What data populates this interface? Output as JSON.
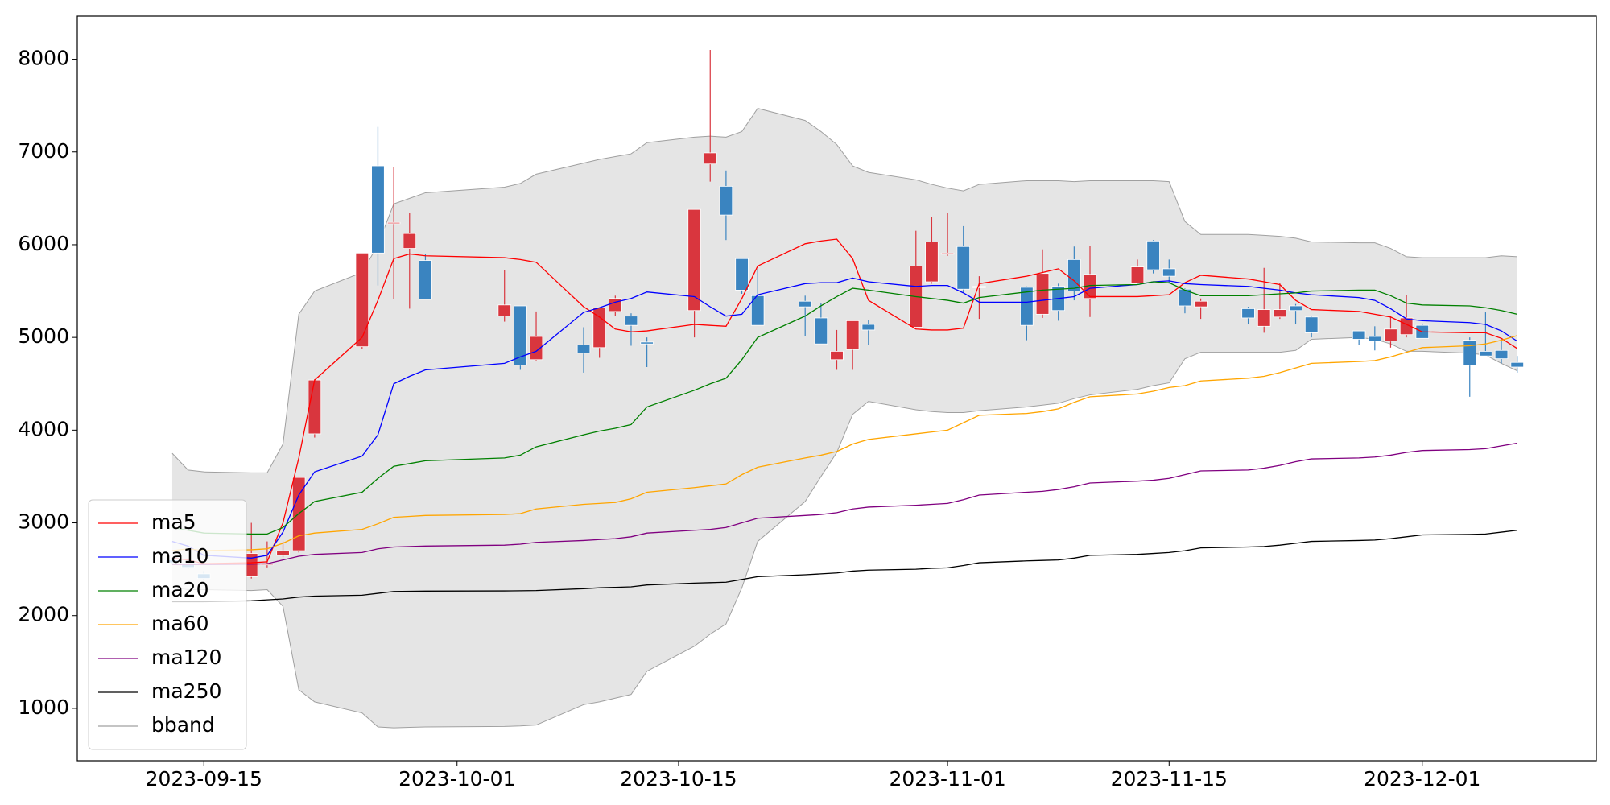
{
  "chart_data": {
    "type": "candlestick",
    "x": [
      "2023-09-13",
      "2023-09-14",
      "2023-09-15",
      "2023-09-18",
      "2023-09-19",
      "2023-09-20",
      "2023-09-21",
      "2023-09-22",
      "2023-09-25",
      "2023-09-26",
      "2023-09-27",
      "2023-09-28",
      "2023-09-29",
      "2023-10-04",
      "2023-10-05",
      "2023-10-06",
      "2023-10-09",
      "2023-10-10",
      "2023-10-11",
      "2023-10-12",
      "2023-10-13",
      "2023-10-16",
      "2023-10-17",
      "2023-10-18",
      "2023-10-19",
      "2023-10-20",
      "2023-10-23",
      "2023-10-24",
      "2023-10-25",
      "2023-10-26",
      "2023-10-27",
      "2023-10-30",
      "2023-10-31",
      "2023-11-01",
      "2023-11-02",
      "2023-11-03",
      "2023-11-06",
      "2023-11-07",
      "2023-11-08",
      "2023-11-09",
      "2023-11-10",
      "2023-11-13",
      "2023-11-14",
      "2023-11-15",
      "2023-11-16",
      "2023-11-17",
      "2023-11-20",
      "2023-11-21",
      "2023-11-22",
      "2023-11-23",
      "2023-11-24",
      "2023-11-27",
      "2023-11-28",
      "2023-11-29",
      "2023-11-30",
      "2023-12-01",
      "2023-12-04",
      "2023-12-05",
      "2023-12-06",
      "2023-12-07"
    ],
    "open": [
      2600,
      2560,
      2450,
      2420,
      2550,
      2650,
      2700,
      3960,
      4900,
      6850,
      6230,
      5960,
      5830,
      5230,
      5340,
      4760,
      4920,
      4890,
      5280,
      5230,
      4950,
      5290,
      6870,
      6630,
      5850,
      5450,
      5390,
      5210,
      4760,
      4870,
      5140,
      5110,
      5600,
      5900,
      5980,
      5540,
      5540,
      5250,
      5550,
      5840,
      5420,
      5580,
      6040,
      5740,
      5520,
      5330,
      5310,
      5120,
      5220,
      5340,
      5220,
      5070,
      5010,
      4960,
      5030,
      5130,
      4970,
      4850,
      4860,
      4730
    ],
    "high": [
      2620,
      2580,
      2480,
      3000,
      2800,
      2800,
      3500,
      4550,
      5910,
      7270,
      6840,
      6340,
      5900,
      5730,
      5340,
      5280,
      5110,
      5320,
      5450,
      5260,
      5000,
      6380,
      8100,
      6800,
      5860,
      5740,
      5450,
      5370,
      5080,
      5180,
      5190,
      6150,
      6300,
      6340,
      6200,
      5660,
      5550,
      5950,
      5580,
      5980,
      5990,
      5840,
      6050,
      5840,
      5530,
      5420,
      5330,
      5750,
      5590,
      5360,
      5230,
      5070,
      5120,
      5230,
      5460,
      5150,
      5000,
      5270,
      4980,
      4800
    ],
    "low": [
      2560,
      2500,
      2380,
      2400,
      2520,
      2630,
      2680,
      3920,
      4880,
      5560,
      5410,
      5310,
      5410,
      5170,
      4650,
      4750,
      4620,
      4780,
      5230,
      4910,
      4680,
      5000,
      6680,
      6050,
      5470,
      5130,
      5010,
      4930,
      4650,
      4650,
      4920,
      5090,
      5580,
      5880,
      5480,
      5200,
      4970,
      5210,
      5180,
      5400,
      5220,
      5580,
      5690,
      5580,
      5260,
      5200,
      5140,
      5050,
      5200,
      5140,
      5000,
      4920,
      4860,
      4890,
      5000,
      4990,
      4360,
      4800,
      4720,
      4620
    ],
    "close": [
      2570,
      2520,
      2400,
      2670,
      2560,
      2700,
      3490,
      4540,
      5910,
      5910,
      6240,
      6120,
      5410,
      5350,
      4700,
      5010,
      4830,
      5320,
      5420,
      5130,
      4930,
      6380,
      6990,
      6320,
      5510,
      5130,
      5330,
      4930,
      4850,
      5180,
      5080,
      5770,
      6030,
      5910,
      5520,
      5550,
      5130,
      5690,
      5290,
      5500,
      5680,
      5760,
      5730,
      5660,
      5340,
      5390,
      5210,
      5300,
      5300,
      5290,
      5050,
      4980,
      4960,
      5090,
      5210,
      4990,
      4700,
      4800,
      4770,
      4680
    ],
    "up_color": "#d9363e",
    "down_color": "#3a84c0",
    "series": [
      {
        "name": "ma5",
        "color": "#ff0000",
        "values": [
          2620,
          2600,
          2560,
          2570,
          2580,
          3000,
          3700,
          4540,
          5000,
          5400,
          5850,
          5900,
          5880,
          5860,
          5840,
          5810,
          5330,
          5220,
          5090,
          5060,
          5070,
          5140,
          5130,
          5120,
          5420,
          5770,
          6010,
          6040,
          6060,
          5850,
          5400,
          5090,
          5080,
          5080,
          5100,
          5580,
          5660,
          5700,
          5740,
          5610,
          5440,
          5440,
          5450,
          5460,
          5590,
          5670,
          5630,
          5600,
          5570,
          5400,
          5300,
          5280,
          5250,
          5220,
          5140,
          5060,
          5050,
          5050,
          4990,
          4880
        ]
      },
      {
        "name": "ma10",
        "color": "#0000ff",
        "values": [
          2800,
          2750,
          2650,
          2620,
          2650,
          2900,
          3300,
          3550,
          3720,
          3950,
          4500,
          4580,
          4650,
          4720,
          4790,
          4850,
          5270,
          5320,
          5380,
          5420,
          5490,
          5440,
          5330,
          5230,
          5250,
          5460,
          5580,
          5590,
          5590,
          5640,
          5600,
          5550,
          5560,
          5560,
          5480,
          5380,
          5380,
          5400,
          5420,
          5440,
          5530,
          5570,
          5600,
          5610,
          5580,
          5570,
          5550,
          5530,
          5510,
          5480,
          5460,
          5430,
          5400,
          5310,
          5200,
          5180,
          5160,
          5140,
          5070,
          4960
        ]
      },
      {
        "name": "ma20",
        "color": "#008000",
        "values": [
          2950,
          2920,
          2890,
          2880,
          2880,
          2950,
          3100,
          3230,
          3330,
          3480,
          3610,
          3640,
          3670,
          3700,
          3730,
          3820,
          3950,
          3990,
          4020,
          4060,
          4250,
          4430,
          4500,
          4560,
          4760,
          5000,
          5230,
          5340,
          5440,
          5530,
          5510,
          5440,
          5420,
          5400,
          5370,
          5430,
          5490,
          5510,
          5520,
          5530,
          5560,
          5570,
          5600,
          5590,
          5510,
          5450,
          5450,
          5460,
          5470,
          5480,
          5500,
          5510,
          5510,
          5450,
          5370,
          5350,
          5340,
          5320,
          5290,
          5250
        ]
      },
      {
        "name": "ma60",
        "color": "#ffa500",
        "values": [
          2700,
          2720,
          2700,
          2710,
          2720,
          2780,
          2860,
          2890,
          2930,
          2990,
          3060,
          3070,
          3080,
          3090,
          3100,
          3150,
          3200,
          3210,
          3220,
          3260,
          3330,
          3380,
          3400,
          3420,
          3520,
          3600,
          3700,
          3730,
          3770,
          3850,
          3900,
          3960,
          3980,
          4000,
          4080,
          4160,
          4180,
          4200,
          4230,
          4300,
          4360,
          4390,
          4420,
          4460,
          4480,
          4530,
          4560,
          4580,
          4620,
          4670,
          4720,
          4740,
          4750,
          4790,
          4840,
          4890,
          4910,
          4930,
          4970,
          5020
        ]
      },
      {
        "name": "ma120",
        "color": "#800080",
        "values": [
          2550,
          2550,
          2550,
          2555,
          2560,
          2600,
          2640,
          2660,
          2680,
          2720,
          2740,
          2745,
          2750,
          2760,
          2770,
          2790,
          2810,
          2820,
          2830,
          2850,
          2890,
          2920,
          2930,
          2950,
          3000,
          3050,
          3080,
          3090,
          3110,
          3150,
          3170,
          3190,
          3200,
          3210,
          3250,
          3300,
          3330,
          3340,
          3360,
          3390,
          3430,
          3450,
          3460,
          3480,
          3520,
          3560,
          3570,
          3590,
          3620,
          3660,
          3690,
          3700,
          3710,
          3730,
          3760,
          3780,
          3790,
          3800,
          3830,
          3860
        ]
      },
      {
        "name": "ma250",
        "color": "#000000",
        "values": [
          2150,
          2150,
          2150,
          2160,
          2170,
          2180,
          2200,
          2210,
          2220,
          2240,
          2260,
          2262,
          2264,
          2266,
          2268,
          2270,
          2290,
          2300,
          2305,
          2310,
          2330,
          2350,
          2355,
          2360,
          2390,
          2420,
          2440,
          2450,
          2460,
          2480,
          2490,
          2500,
          2510,
          2515,
          2540,
          2570,
          2590,
          2595,
          2600,
          2620,
          2650,
          2660,
          2670,
          2680,
          2700,
          2730,
          2740,
          2745,
          2760,
          2780,
          2800,
          2810,
          2815,
          2830,
          2850,
          2870,
          2875,
          2880,
          2900,
          2920
        ]
      }
    ],
    "band": {
      "name": "bband",
      "color": "#a0a0a0",
      "fill": "#e5e5e5",
      "upper": [
        3750,
        3570,
        3550,
        3540,
        3540,
        3850,
        5250,
        5500,
        5700,
        6000,
        6440,
        6500,
        6560,
        6620,
        6660,
        6760,
        6880,
        6920,
        6950,
        6980,
        7100,
        7160,
        7170,
        7160,
        7220,
        7470,
        7340,
        7220,
        7080,
        6850,
        6780,
        6700,
        6650,
        6610,
        6580,
        6650,
        6690,
        6690,
        6690,
        6680,
        6690,
        6690,
        6690,
        6680,
        6250,
        6110,
        6110,
        6100,
        6090,
        6070,
        6030,
        6020,
        6020,
        5960,
        5870,
        5860,
        5860,
        5860,
        5880,
        5870
      ],
      "lower": [
        2300,
        2280,
        2280,
        2270,
        2280,
        2100,
        1200,
        1070,
        950,
        800,
        790,
        795,
        800,
        805,
        810,
        820,
        1040,
        1070,
        1110,
        1150,
        1400,
        1670,
        1800,
        1910,
        2300,
        2800,
        3230,
        3500,
        3760,
        4170,
        4310,
        4220,
        4200,
        4190,
        4190,
        4210,
        4250,
        4270,
        4290,
        4340,
        4380,
        4440,
        4480,
        4510,
        4770,
        4840,
        4840,
        4840,
        4840,
        4860,
        4980,
        5000,
        4980,
        4930,
        4850,
        4850,
        4830,
        4810,
        4720,
        4640
      ]
    },
    "xlim": [
      "2023-09-07",
      "2023-12-12"
    ],
    "xticks": [
      "2023-09-15",
      "2023-10-01",
      "2023-10-15",
      "2023-11-01",
      "2023-11-15",
      "2023-12-01"
    ],
    "ylim": [
      435,
      8465
    ],
    "yticks": [
      1000,
      2000,
      3000,
      4000,
      5000,
      6000,
      7000,
      8000
    ],
    "legend": "lower left"
  }
}
